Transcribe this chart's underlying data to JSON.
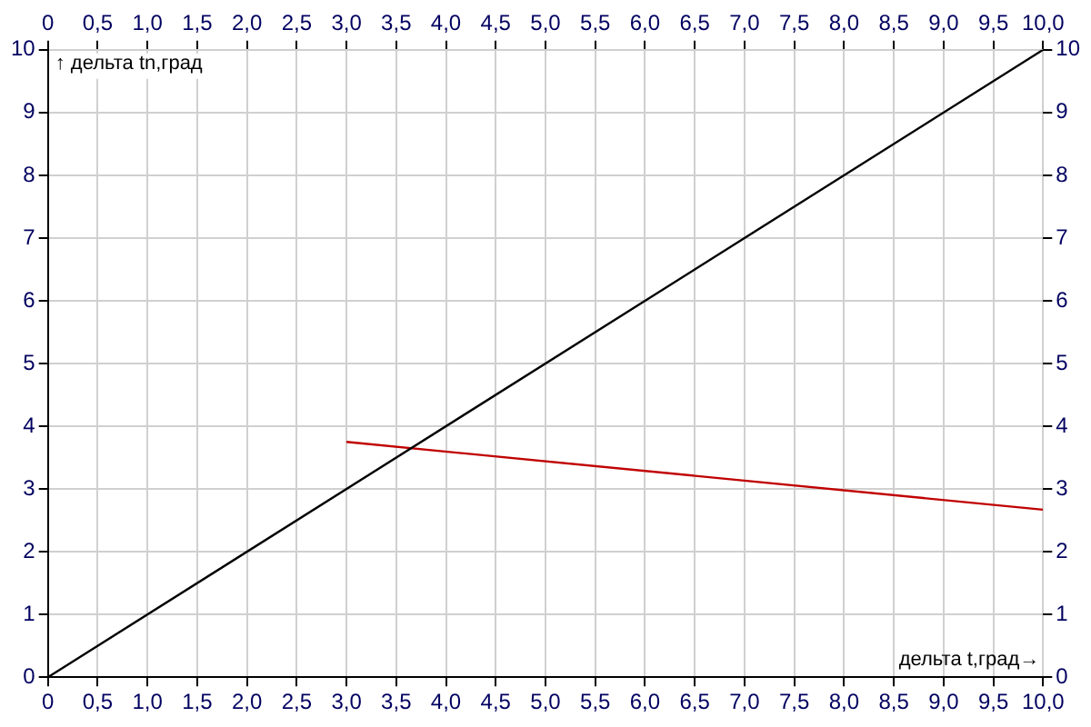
{
  "chart_data": {
    "type": "line",
    "xlabel": "дельта t,град→",
    "ylabel": "↑ дельта tn,град",
    "xlim": [
      0,
      10
    ],
    "xticks": [
      0,
      {
        "value": 0.5,
        "label": "0,5"
      },
      {
        "value": 1,
        "label": "1,0"
      },
      {
        "value": 1.5,
        "label": "1,5"
      },
      {
        "value": 2,
        "label": "2,0"
      },
      {
        "value": 2.5,
        "label": "2,5"
      },
      {
        "value": 3,
        "label": "3,0"
      },
      {
        "value": 3.5,
        "label": "3,5"
      },
      {
        "value": 4,
        "label": "4,0"
      },
      {
        "value": 4.5,
        "label": "4,5"
      },
      {
        "value": 5,
        "label": "5,0"
      },
      {
        "value": 5.5,
        "label": "5,5"
      },
      {
        "value": 6,
        "label": "6,0"
      },
      {
        "value": 6.5,
        "label": "6,5"
      },
      {
        "value": 7,
        "label": "7,0"
      },
      {
        "value": 7.5,
        "label": "7,5"
      },
      {
        "value": 8,
        "label": "8,0"
      },
      {
        "value": 8.5,
        "label": "8,5"
      },
      {
        "value": 9,
        "label": "9,0"
      },
      {
        "value": 9.5,
        "label": "9,5"
      },
      {
        "value": 10,
        "label": "10,0"
      }
    ],
    "x2lim": [
      0,
      10
    ],
    "x2ticks": [
      0,
      {
        "value": 0.5,
        "label": "0,5"
      },
      {
        "value": 1,
        "label": "1,0"
      },
      {
        "value": 1.5,
        "label": "1,5"
      },
      {
        "value": 2,
        "label": "2,0"
      },
      {
        "value": 2.5,
        "label": "2,5"
      },
      {
        "value": 3,
        "label": "3,0"
      },
      {
        "value": 3.5,
        "label": "3,5"
      },
      {
        "value": 4,
        "label": "4,0"
      },
      {
        "value": 4.5,
        "label": "4,5"
      },
      {
        "value": 5,
        "label": "5,0"
      },
      {
        "value": 5.5,
        "label": "5,5"
      },
      {
        "value": 6,
        "label": "6,0"
      },
      {
        "value": 6.5,
        "label": "6,5"
      },
      {
        "value": 7,
        "label": "7,0"
      },
      {
        "value": 7.5,
        "label": "7,5"
      },
      {
        "value": 8,
        "label": "8,0"
      },
      {
        "value": 8.5,
        "label": "8,5"
      },
      {
        "value": 9,
        "label": "9,0"
      },
      {
        "value": 9.5,
        "label": "9,5"
      },
      {
        "value": 10,
        "label": "10,0"
      }
    ],
    "ylim": [
      0,
      10
    ],
    "yticks": [
      0,
      1,
      2,
      3,
      4,
      5,
      6,
      7,
      8,
      9,
      10
    ],
    "y2lim": [
      0,
      10
    ],
    "y2ticks": [
      0,
      1,
      2,
      3,
      4,
      5,
      6,
      7,
      8,
      9,
      10
    ],
    "grid": true,
    "marker": "none",
    "series": [
      {
        "color": "#000000",
        "x": [
          0,
          10
        ],
        "values": [
          0,
          10
        ]
      },
      {
        "color": "#c00000",
        "x": [
          3,
          10
        ],
        "values": [
          3.75,
          2.67
        ]
      }
    ]
  }
}
